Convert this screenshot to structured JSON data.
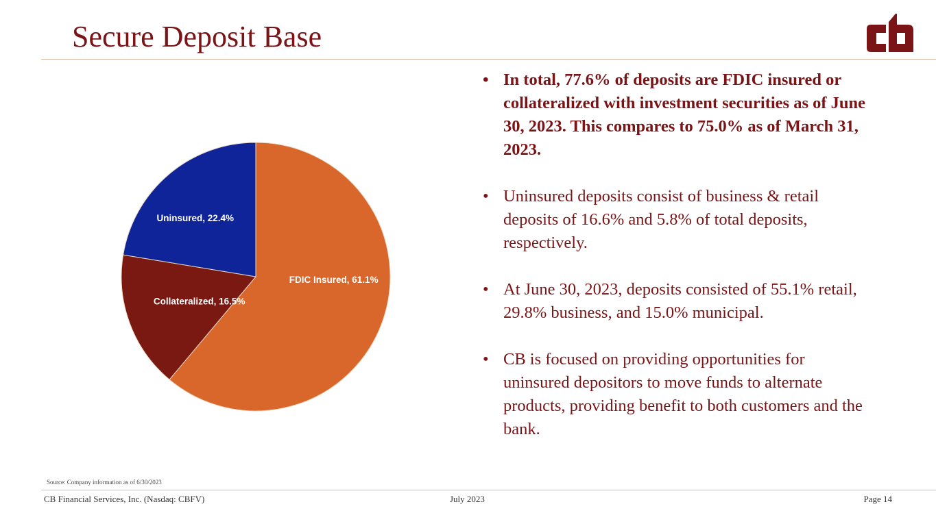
{
  "title": "Secure Deposit Base",
  "logo": {
    "text": "cb",
    "color": "#7b1416"
  },
  "colors": {
    "accent": "#7b1416",
    "rule": "#d7b8a6"
  },
  "chart_data": {
    "type": "pie",
    "title": "",
    "start_angle_deg": 0,
    "direction": "clockwise",
    "slices": [
      {
        "label": "FDIC Insured, 61.1%",
        "name": "FDIC Insured",
        "value": 61.1,
        "color": "#d9672b"
      },
      {
        "label": "Collateralized, 16.5%",
        "name": "Collateralized",
        "value": 16.5,
        "color": "#7a1812"
      },
      {
        "label": "Uninsured, 22.4%",
        "name": "Uninsured",
        "value": 22.4,
        "color": "#10249a"
      }
    ]
  },
  "bullets": [
    {
      "text": "In total, 77.6% of deposits are FDIC insured or collateralized with investment securities as of June 30, 2023. This compares to 75.0% as of March 31, 2023.",
      "bold": true
    },
    {
      "text": "Uninsured deposits consist of business & retail deposits of 16.6% and 5.8% of total deposits, respectively.",
      "bold": false
    },
    {
      "text": "At June 30, 2023, deposits consisted of 55.1% retail, 29.8% business, and 15.0% municipal.",
      "bold": false
    },
    {
      "text": "CB is focused on providing opportunities for uninsured depositors to move funds to alternate products, providing benefit to both customers and the bank.",
      "bold": false
    }
  ],
  "source": "Source: Company information as of 6/30/2023",
  "footer": {
    "company": "CB Financial Services, Inc. (Nasdaq: CBFV)",
    "date": "July 2023",
    "page": "Page 14"
  }
}
